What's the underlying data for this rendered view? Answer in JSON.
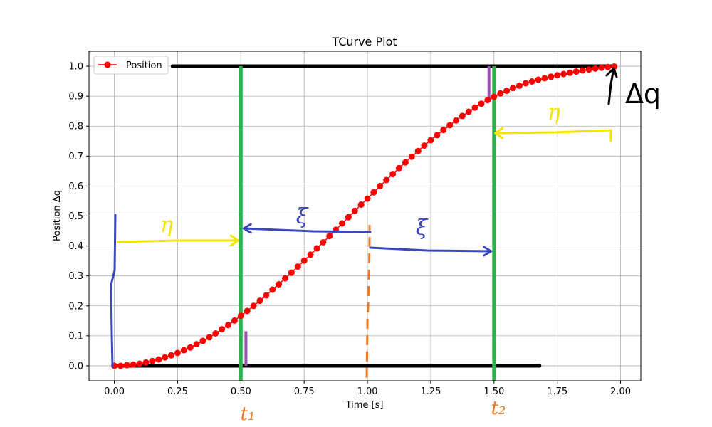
{
  "chart_data": {
    "type": "line",
    "title": "TCurve Plot",
    "xlabel": "Time [s]",
    "ylabel": "Position Δq",
    "xlim": [
      -0.1,
      2.08
    ],
    "ylim": [
      -0.05,
      1.05
    ],
    "xticks": [
      0.0,
      0.25,
      0.5,
      0.75,
      1.0,
      1.25,
      1.5,
      1.75,
      2.0
    ],
    "xtick_labels": [
      "0.00",
      "0.25",
      "0.50",
      "0.75",
      "1.00",
      "1.25",
      "1.50",
      "1.75",
      "2.00"
    ],
    "yticks": [
      0.0,
      0.1,
      0.2,
      0.3,
      0.4,
      0.5,
      0.6,
      0.7,
      0.8,
      0.9,
      1.0
    ],
    "ytick_labels": [
      "0.0",
      "0.1",
      "0.2",
      "0.3",
      "0.4",
      "0.5",
      "0.6",
      "0.7",
      "0.8",
      "0.9",
      "1.0"
    ],
    "grid": true,
    "legend_position": "top-left",
    "series": [
      {
        "name": "Position",
        "color": "#ff0000",
        "marker": "circle",
        "x": [
          0.0,
          0.025,
          0.05,
          0.075,
          0.1,
          0.125,
          0.15,
          0.175,
          0.2,
          0.225,
          0.25,
          0.275,
          0.3,
          0.325,
          0.35,
          0.375,
          0.4,
          0.425,
          0.45,
          0.475,
          0.5,
          0.525,
          0.55,
          0.575,
          0.6,
          0.625,
          0.65,
          0.675,
          0.7,
          0.725,
          0.75,
          0.775,
          0.8,
          0.825,
          0.85,
          0.875,
          0.9,
          0.925,
          0.95,
          0.975,
          1.0,
          1.025,
          1.05,
          1.075,
          1.1,
          1.125,
          1.15,
          1.175,
          1.2,
          1.225,
          1.25,
          1.275,
          1.3,
          1.325,
          1.35,
          1.375,
          1.4,
          1.425,
          1.45,
          1.475,
          1.5,
          1.525,
          1.55,
          1.575,
          1.6,
          1.625,
          1.65,
          1.675,
          1.7,
          1.725,
          1.75,
          1.775,
          1.8,
          1.825,
          1.85,
          1.875,
          1.9,
          1.925,
          1.95,
          1.975
        ],
        "y": [
          0.0,
          0.0,
          0.002,
          0.004,
          0.007,
          0.011,
          0.016,
          0.021,
          0.028,
          0.035,
          0.043,
          0.052,
          0.061,
          0.072,
          0.083,
          0.095,
          0.108,
          0.122,
          0.136,
          0.151,
          0.167,
          0.183,
          0.2,
          0.217,
          0.235,
          0.254,
          0.272,
          0.292,
          0.311,
          0.331,
          0.351,
          0.371,
          0.392,
          0.412,
          0.433,
          0.454,
          0.475,
          0.496,
          0.517,
          0.538,
          0.558,
          0.579,
          0.6,
          0.62,
          0.64,
          0.66,
          0.679,
          0.698,
          0.717,
          0.735,
          0.753,
          0.77,
          0.787,
          0.803,
          0.819,
          0.834,
          0.848,
          0.862,
          0.875,
          0.887,
          0.898,
          0.909,
          0.918,
          0.927,
          0.935,
          0.943,
          0.949,
          0.955,
          0.96,
          0.965,
          0.97,
          0.974,
          0.978,
          0.982,
          0.986,
          0.989,
          0.992,
          0.995,
          0.997,
          0.999
        ]
      }
    ],
    "annotations": {
      "black_lines": [
        {
          "y": 1.0,
          "x_start": 0.23,
          "x_end": 1.98
        },
        {
          "y": 0.0,
          "x_start": 0.0,
          "x_end": 1.68
        }
      ],
      "green_lines": [
        {
          "x": 0.5
        },
        {
          "x": 1.5
        }
      ],
      "purple_marks": [
        {
          "x": 0.52,
          "y_start": 0.0,
          "y_end": 0.115
        },
        {
          "x": 1.48,
          "y_start": 0.88,
          "y_end": 1.0
        }
      ],
      "orange_dashed": {
        "x": 1.0
      },
      "handwritten": {
        "t1": "t₁",
        "t2": "t₂",
        "delta_q": "Δq",
        "eta": "η",
        "xi": "ξ"
      }
    }
  }
}
